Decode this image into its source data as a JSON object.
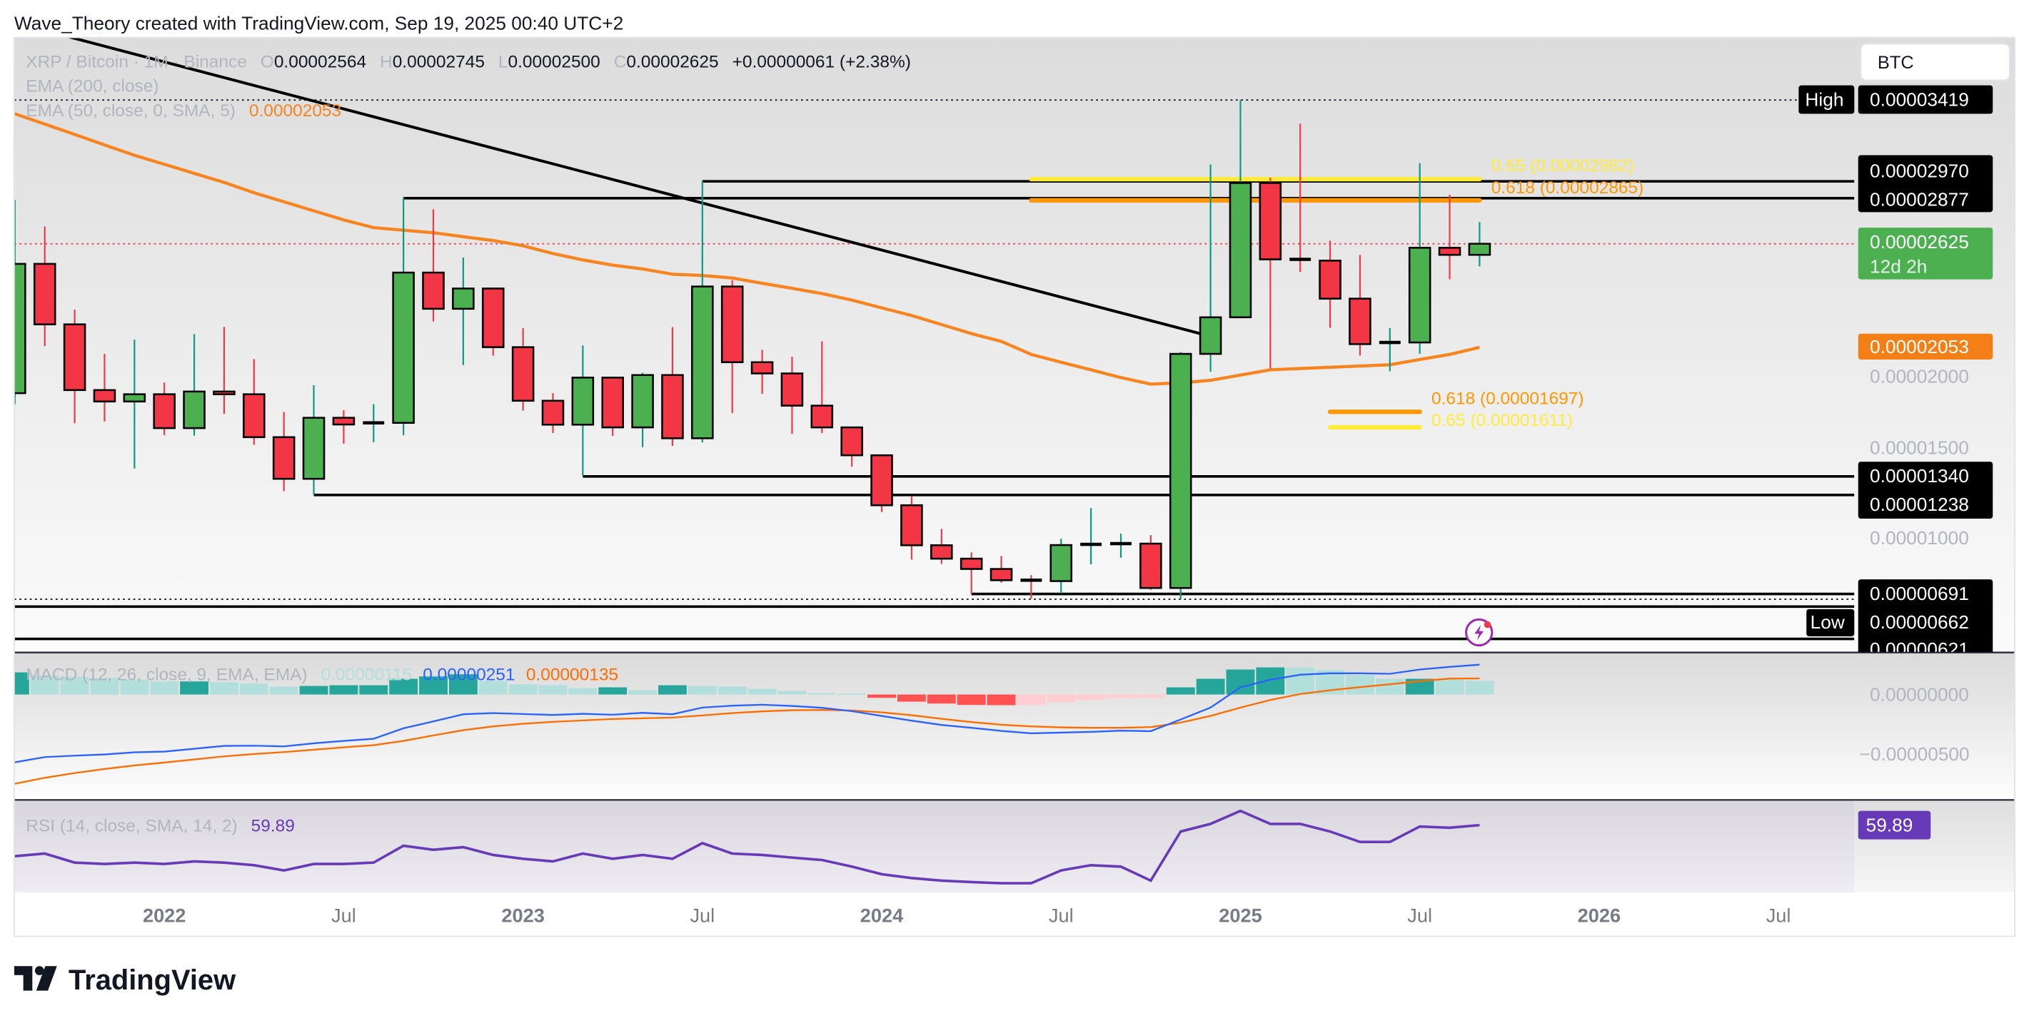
{
  "header": {
    "attribution": "Wave_Theory created with TradingView.com, Sep 19, 2025 00:40 UTC+2"
  },
  "legend": {
    "symbol": "XRP / Bitcoin · 1M · Binance",
    "o_label": "O",
    "open": "0.00002564",
    "h_label": "H",
    "high": "0.00002745",
    "l_label": "L",
    "low": "0.00002500",
    "c_label": "C",
    "close": "0.00002625",
    "change": "+0.00000061 (+2.38%)",
    "ema200": "EMA (200, close)",
    "ema50": "EMA (50, close, 0, SMA, 5)",
    "ema50_value": "0.00002053"
  },
  "macd_legend": {
    "title": "MACD (12, 26, close, 9, EMA, EMA)",
    "histogram": "0.00000115",
    "macd": "0.00000251",
    "signal": "0.00000135"
  },
  "rsi_legend": {
    "title": "RSI (14, close, SMA, 14, 2)",
    "value": "59.89"
  },
  "currency_button": "BTC",
  "price_axis": {
    "high_tag": "High",
    "high": "0.00003419",
    "level_2970": "0.00002970",
    "level_2877": "0.00002877",
    "last_price": "0.00002625",
    "countdown": "12d 2h",
    "ema50": "0.00002053",
    "tick_2000": "0.00002000",
    "tick_1500": "0.00001500",
    "level_1340": "0.00001340",
    "level_1238": "0.00001238",
    "tick_1000": "0.00001000",
    "level_691": "0.00000691",
    "low_tag": "Low",
    "low": "0.00000662",
    "level_621": "0.00000621"
  },
  "macd_axis": {
    "zero": "0.00000000",
    "minus500": "−0.00000500"
  },
  "rsi_axis": {
    "value": "59.89"
  },
  "time_axis": [
    {
      "label": "2022",
      "date": "2022-01",
      "year": true
    },
    {
      "label": "Jul",
      "date": "2022-07",
      "year": false
    },
    {
      "label": "2023",
      "date": "2023-01",
      "year": true
    },
    {
      "label": "Jul",
      "date": "2023-07",
      "year": false
    },
    {
      "label": "2024",
      "date": "2024-01",
      "year": true
    },
    {
      "label": "Jul",
      "date": "2024-07",
      "year": false
    },
    {
      "label": "2025",
      "date": "2025-01",
      "year": true
    },
    {
      "label": "Jul",
      "date": "2025-07",
      "year": false
    },
    {
      "label": "2026",
      "date": "2026-01",
      "year": true
    },
    {
      "label": "Jul",
      "date": "2026-07",
      "year": false
    }
  ],
  "logo": "TradingView",
  "colors": {
    "up_body": "#4caf50",
    "down_body": "#f23645",
    "up_wick": "#089981",
    "down_wick": "#f23645",
    "ema50": "#f7841f",
    "macd": "#2962ff",
    "signal": "#ff6d00",
    "hist_up_strong": "#26a69a",
    "hist_up_weak": "#b2dfdb",
    "hist_down_strong": "#ff5252",
    "hist_down_weak": "#ffcdd2",
    "rsi": "#673ab7",
    "fib_618": "#ff9800",
    "fib_65": "#ffeb3b",
    "last_price": "#4caf50"
  },
  "chart_data": {
    "type": "candlestick",
    "symbol": "XRP / Bitcoin",
    "interval": "1M",
    "exchange": "Binance",
    "y_scale": "linear",
    "candles_columns": [
      "date",
      "open",
      "high",
      "low",
      "close"
    ],
    "candles": [
      [
        "2021-08",
        1.8e-05,
        2.868e-05,
        1.739e-05,
        2.514e-05
      ],
      [
        "2021-09",
        2.514e-05,
        2.721e-05,
        2.06e-05,
        2.18e-05
      ],
      [
        "2021-10",
        2.18e-05,
        2.261e-05,
        1.634e-05,
        1.817e-05
      ],
      [
        "2021-11",
        1.817e-05,
        2.017e-05,
        1.644e-05,
        1.754e-05
      ],
      [
        "2021-12",
        1.754e-05,
        2.096e-05,
        1.384e-05,
        1.794e-05
      ],
      [
        "2022-01",
        1.794e-05,
        1.859e-05,
        1.568e-05,
        1.607e-05
      ],
      [
        "2022-02",
        1.607e-05,
        2.126e-05,
        1.565e-05,
        1.809e-05
      ],
      [
        "2022-03",
        1.809e-05,
        2.166e-05,
        1.686e-05,
        1.794e-05
      ],
      [
        "2022-04",
        1.794e-05,
        1.988e-05,
        1.515e-05,
        1.557e-05
      ],
      [
        "2022-05",
        1.557e-05,
        1.696e-05,
        1.258e-05,
        1.327e-05
      ],
      [
        "2022-06",
        1.327e-05,
        1.844e-05,
        1.239e-05,
        1.664e-05
      ],
      [
        "2022-07",
        1.664e-05,
        1.706e-05,
        1.521e-05,
        1.627e-05
      ],
      [
        "2022-08",
        1.627e-05,
        1.739e-05,
        1.529e-05,
        1.636e-05
      ],
      [
        "2022-09",
        1.636e-05,
        2.881e-05,
        1.568e-05,
        2.466e-05
      ],
      [
        "2022-10",
        2.466e-05,
        2.816e-05,
        2.196e-05,
        2.266e-05
      ],
      [
        "2022-11",
        2.266e-05,
        2.549e-05,
        1.955e-05,
        2.378e-05
      ],
      [
        "2022-12",
        2.378e-05,
        2.378e-05,
        2.007e-05,
        2.054e-05
      ],
      [
        "2023-01",
        2.054e-05,
        2.159e-05,
        1.703e-05,
        1.758e-05
      ],
      [
        "2023-02",
        1.758e-05,
        1.8e-05,
        1.58e-05,
        1.626e-05
      ],
      [
        "2023-03",
        1.626e-05,
        2.064e-05,
        1.344e-05,
        1.886e-05
      ],
      [
        "2023-04",
        1.886e-05,
        1.886e-05,
        1.564e-05,
        1.611e-05
      ],
      [
        "2023-05",
        1.611e-05,
        1.913e-05,
        1.502e-05,
        1.9e-05
      ],
      [
        "2023-06",
        1.9e-05,
        2.165e-05,
        1.509e-05,
        1.551e-05
      ],
      [
        "2023-07",
        1.551e-05,
        2.971e-05,
        1.528e-05,
        2.389e-05
      ],
      [
        "2023-08",
        2.389e-05,
        2.424e-05,
        1.689e-05,
        1.971e-05
      ],
      [
        "2023-09",
        1.971e-05,
        2.04e-05,
        1.796e-05,
        1.909e-05
      ],
      [
        "2023-10",
        1.909e-05,
        2.001e-05,
        1.575e-05,
        1.731e-05
      ],
      [
        "2023-11",
        1.731e-05,
        2.086e-05,
        1.58e-05,
        1.611e-05
      ],
      [
        "2023-12",
        1.611e-05,
        1.611e-05,
        1.394e-05,
        1.457e-05
      ],
      [
        "2024-01",
        1.457e-05,
        1.457e-05,
        1.143e-05,
        1.181e-05
      ],
      [
        "2024-02",
        1.181e-05,
        1.229e-05,
        8.81e-06,
        9.6e-06
      ],
      [
        "2024-03",
        9.6e-06,
        1.05e-05,
        8.57e-06,
        8.86e-06
      ],
      [
        "2024-04",
        8.86e-06,
        9.21e-06,
        6.91e-06,
        8.29e-06
      ],
      [
        "2024-05",
        8.29e-06,
        9.01e-06,
        7.53e-06,
        7.67e-06
      ],
      [
        "2024-06",
        7.67e-06,
        7.95e-06,
        6.64e-06,
        7.62e-06
      ],
      [
        "2024-07",
        7.62e-06,
        9.96e-06,
        6.94e-06,
        9.61e-06
      ],
      [
        "2024-08",
        9.61e-06,
        1.165e-05,
        8.55e-06,
        9.65e-06
      ],
      [
        "2024-09",
        9.61e-06,
        1.024e-05,
        8.91e-06,
        9.69e-06
      ],
      [
        "2024-10",
        9.69e-06,
        1.016e-05,
        7.14e-06,
        7.24e-06
      ],
      [
        "2024-11",
        7.24e-06,
        2.027e-05,
        6.64e-06,
        2.017e-05
      ],
      [
        "2024-12",
        2.017e-05,
        3.063e-05,
        1.918e-05,
        2.219e-05
      ],
      [
        "2025-01",
        2.219e-05,
        3.419e-05,
        2.219e-05,
        2.961e-05
      ],
      [
        "2025-02",
        2.961e-05,
        2.99e-05,
        1.936e-05,
        2.539e-05
      ],
      [
        "2025-03",
        2.539e-05,
        3.289e-05,
        2.47e-05,
        2.532e-05
      ],
      [
        "2025-04",
        2.532e-05,
        2.642e-05,
        2.161e-05,
        2.322e-05
      ],
      [
        "2025-05",
        2.322e-05,
        2.564e-05,
        2.008e-05,
        2.071e-05
      ],
      [
        "2025-06",
        2.071e-05,
        2.159e-05,
        1.921e-05,
        2.08e-05
      ],
      [
        "2025-07",
        2.08e-05,
        3.07e-05,
        2.017e-05,
        2.603e-05
      ],
      [
        "2025-08",
        2.603e-05,
        2.896e-05,
        2.429e-05,
        2.564e-05
      ],
      [
        "2025-09",
        2.564e-05,
        2.745e-05,
        2.5e-05,
        2.625e-05
      ]
    ],
    "ema50": [
      3.343e-05,
      3.286e-05,
      3.229e-05,
      3.171e-05,
      3.114e-05,
      3.064e-05,
      3.014e-05,
      2.964e-05,
      2.907e-05,
      2.857e-05,
      2.807e-05,
      2.757e-05,
      2.714e-05,
      2.7e-05,
      2.686e-05,
      2.664e-05,
      2.643e-05,
      2.614e-05,
      2.571e-05,
      2.536e-05,
      2.507e-05,
      2.486e-05,
      2.457e-05,
      2.45e-05,
      2.436e-05,
      2.407e-05,
      2.379e-05,
      2.35e-05,
      2.314e-05,
      2.271e-05,
      2.229e-05,
      2.179e-05,
      2.129e-05,
      2.086e-05,
      2.014e-05,
      1.971e-05,
      1.929e-05,
      1.886e-05,
      1.85e-05,
      1.857e-05,
      1.871e-05,
      1.9e-05,
      1.929e-05,
      1.936e-05,
      1.943e-05,
      1.95e-05,
      1.957e-05,
      1.986e-05,
      2.014e-05,
      2.053e-05
    ],
    "trendline": {
      "from": "2021-08",
      "from_value": 3.846e-05,
      "to": "2024-12",
      "to_value": 2.114e-05
    },
    "horizontal_levels": [
      {
        "value": 2.97e-05,
        "from": "2023-07"
      },
      {
        "value": 2.877e-05,
        "from": "2022-09"
      },
      {
        "value": 1.34e-05,
        "from": "2023-03"
      },
      {
        "value": 1.238e-05,
        "from": "2022-06"
      },
      {
        "value": 6.91e-06,
        "from": "2024-04"
      },
      {
        "value": 6.21e-06,
        "from": "2021-08"
      },
      {
        "value": 4.43e-06,
        "from": "2021-08"
      }
    ],
    "high_line": 3.419e-05,
    "low_line": 6.62e-06,
    "last_price": 2.625e-05,
    "fib_levels": [
      {
        "label": "0.65 (0.00002982)",
        "value": 2.982e-05,
        "from": "2024-06",
        "to": "2025-09",
        "color": "#ffeb3b"
      },
      {
        "label": "0.618 (0.00002865)",
        "value": 2.865e-05,
        "from": "2024-06",
        "to": "2025-09",
        "color": "#ff9800"
      },
      {
        "label": "0.618 (0.00001697)",
        "value": 1.697e-05,
        "from": "2025-04",
        "to": "2025-07",
        "color": "#ff9800"
      },
      {
        "label": "0.65 (0.00001611)",
        "value": 1.611e-05,
        "from": "2025-04",
        "to": "2025-07",
        "color": "#ffeb3b"
      }
    ],
    "macd": {
      "macd": [
        -5.7e-06,
        -5.26e-06,
        -5.14e-06,
        -5.04e-06,
        -4.86e-06,
        -4.8e-06,
        -4.56e-06,
        -4.32e-06,
        -4.3e-06,
        -4.36e-06,
        -4.1e-06,
        -3.9e-06,
        -3.72e-06,
        -2.84e-06,
        -2.26e-06,
        -1.66e-06,
        -1.56e-06,
        -1.64e-06,
        -1.72e-06,
        -1.62e-06,
        -1.7e-06,
        -1.54e-06,
        -1.66e-06,
        -1.1e-06,
        -9.4e-07,
        -8.6e-07,
        -9.6e-07,
        -1.12e-06,
        -1.4e-06,
        -1.8e-06,
        -2.2e-06,
        -2.56e-06,
        -2.8e-06,
        -3.06e-06,
        -3.26e-06,
        -3.2e-06,
        -3.14e-06,
        -3.04e-06,
        -3.08e-06,
        -2.1e-06,
        -1.1e-06,
        6e-07,
        1.24e-06,
        1.66e-06,
        1.78e-06,
        1.78e-06,
        1.74e-06,
        2.1e-06,
        2.32e-06,
        2.51e-06
      ],
      "signal": [
        -7.5e-06,
        -7e-06,
        -6.6e-06,
        -6.26e-06,
        -5.96e-06,
        -5.72e-06,
        -5.46e-06,
        -5.2e-06,
        -5e-06,
        -4.84e-06,
        -4.64e-06,
        -4.44e-06,
        -4.26e-06,
        -3.9e-06,
        -3.44e-06,
        -3e-06,
        -2.68e-06,
        -2.46e-06,
        -2.3e-06,
        -2.18e-06,
        -2.06e-06,
        -2e-06,
        -1.94e-06,
        -1.76e-06,
        -1.56e-06,
        -1.42e-06,
        -1.32e-06,
        -1.3e-06,
        -1.34e-06,
        -1.5e-06,
        -1.74e-06,
        -2.04e-06,
        -2.32e-06,
        -2.54e-06,
        -2.68e-06,
        -2.76e-06,
        -2.8e-06,
        -2.8e-06,
        -2.74e-06,
        -2.36e-06,
        -1.8e-06,
        -1.1e-06,
        -4.6e-07,
        4e-08,
        3.6e-07,
        6.2e-07,
        8.6e-07,
        1.12e-06,
        1.34e-06,
        1.35e-06
      ],
      "histogram": [
        1.86e-06,
        1.6e-06,
        1.5e-06,
        1.4e-06,
        1.26e-06,
        1.1e-06,
        1.1e-06,
        1.04e-06,
        9.2e-07,
        6.6e-07,
        7.2e-07,
        7.8e-07,
        7.8e-07,
        1.32e-06,
        1.52e-06,
        1.7e-06,
        1.14e-06,
        8.6e-07,
        8e-07,
        5.4e-07,
        6e-07,
        3.6e-07,
        7.8e-07,
        7.2e-07,
        6.6e-07,
        4.8e-07,
        3e-07,
        1.2e-07,
        6e-08,
        -2.8e-07,
        -6e-07,
        -7.6e-07,
        -8.8e-07,
        -9e-07,
        -8.8e-07,
        -6.4e-07,
        -4.6e-07,
        -3e-07,
        -2.8e-07,
        6e-07,
        1.32e-06,
        2.1e-06,
        2.28e-06,
        2.26e-06,
        2.06e-06,
        1.64e-06,
        1.32e-06,
        1.32e-06,
        1.26e-06,
        1.15e-06
      ]
    },
    "rsi": [
      44.4,
      45.7,
      41.2,
      40.5,
      41.2,
      40.5,
      41.8,
      41.2,
      39.9,
      37.3,
      40.5,
      40.5,
      41.2,
      49.6,
      47.6,
      48.9,
      45.0,
      43.1,
      41.8,
      45.7,
      43.1,
      45.0,
      43.1,
      50.9,
      45.7,
      45.0,
      43.7,
      42.5,
      39.2,
      35.4,
      33.5,
      32.2,
      31.5,
      30.9,
      30.9,
      37.3,
      39.9,
      39.2,
      32.2,
      56.7,
      60.5,
      67.0,
      60.5,
      60.5,
      56.7,
      51.5,
      51.5,
      59.2,
      58.6,
      59.89
    ]
  }
}
